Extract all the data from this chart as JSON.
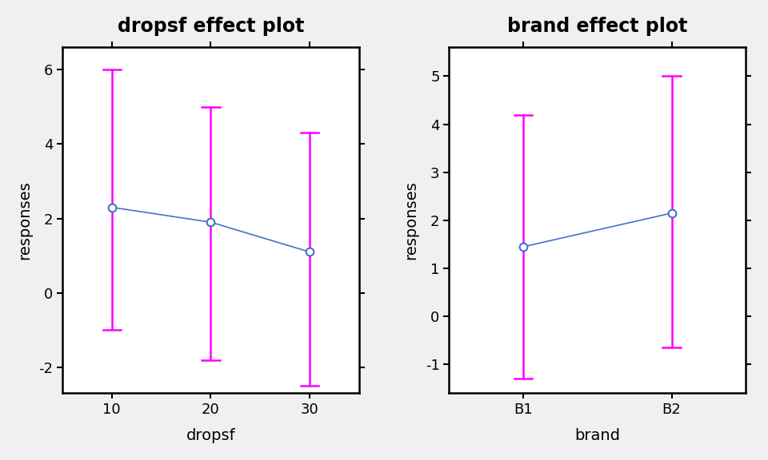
{
  "plot1": {
    "title": "dropsf effect plot",
    "xlabel": "dropsf",
    "ylabel": "responses",
    "x": [
      10,
      20,
      30
    ],
    "y": [
      2.3,
      1.9,
      1.1
    ],
    "ci_upper": [
      6.0,
      5.0,
      4.3
    ],
    "ci_lower": [
      -1.0,
      -1.8,
      -2.5
    ],
    "ylim": [
      -2.7,
      6.6
    ],
    "yticks": [
      -2,
      0,
      2,
      4,
      6
    ],
    "xlim": [
      5,
      35
    ],
    "xticks": [
      10,
      20,
      30
    ]
  },
  "plot2": {
    "title": "brand effect plot",
    "xlabel": "brand",
    "ylabel": "responses",
    "x": [
      0,
      1
    ],
    "x_labels": [
      "B1",
      "B2"
    ],
    "y": [
      1.45,
      2.15
    ],
    "ci_upper": [
      4.2,
      5.0
    ],
    "ci_lower": [
      -1.3,
      -0.65
    ],
    "ylim": [
      -1.6,
      5.6
    ],
    "yticks": [
      -1,
      0,
      1,
      2,
      3,
      4,
      5
    ],
    "xlim": [
      -0.5,
      1.5
    ]
  },
  "line_color": "#4472C4",
  "ci_color": "#FF00FF",
  "marker_facecolor": "white",
  "marker_edgecolor": "#4472C4",
  "marker_size": 7,
  "marker_linewidth": 1.5,
  "line_linewidth": 1.2,
  "ci_linewidth": 1.8,
  "title_fontsize": 17,
  "label_fontsize": 14,
  "tick_fontsize": 13,
  "background_color": "#f0f0f0",
  "axes_background": "#ffffff"
}
